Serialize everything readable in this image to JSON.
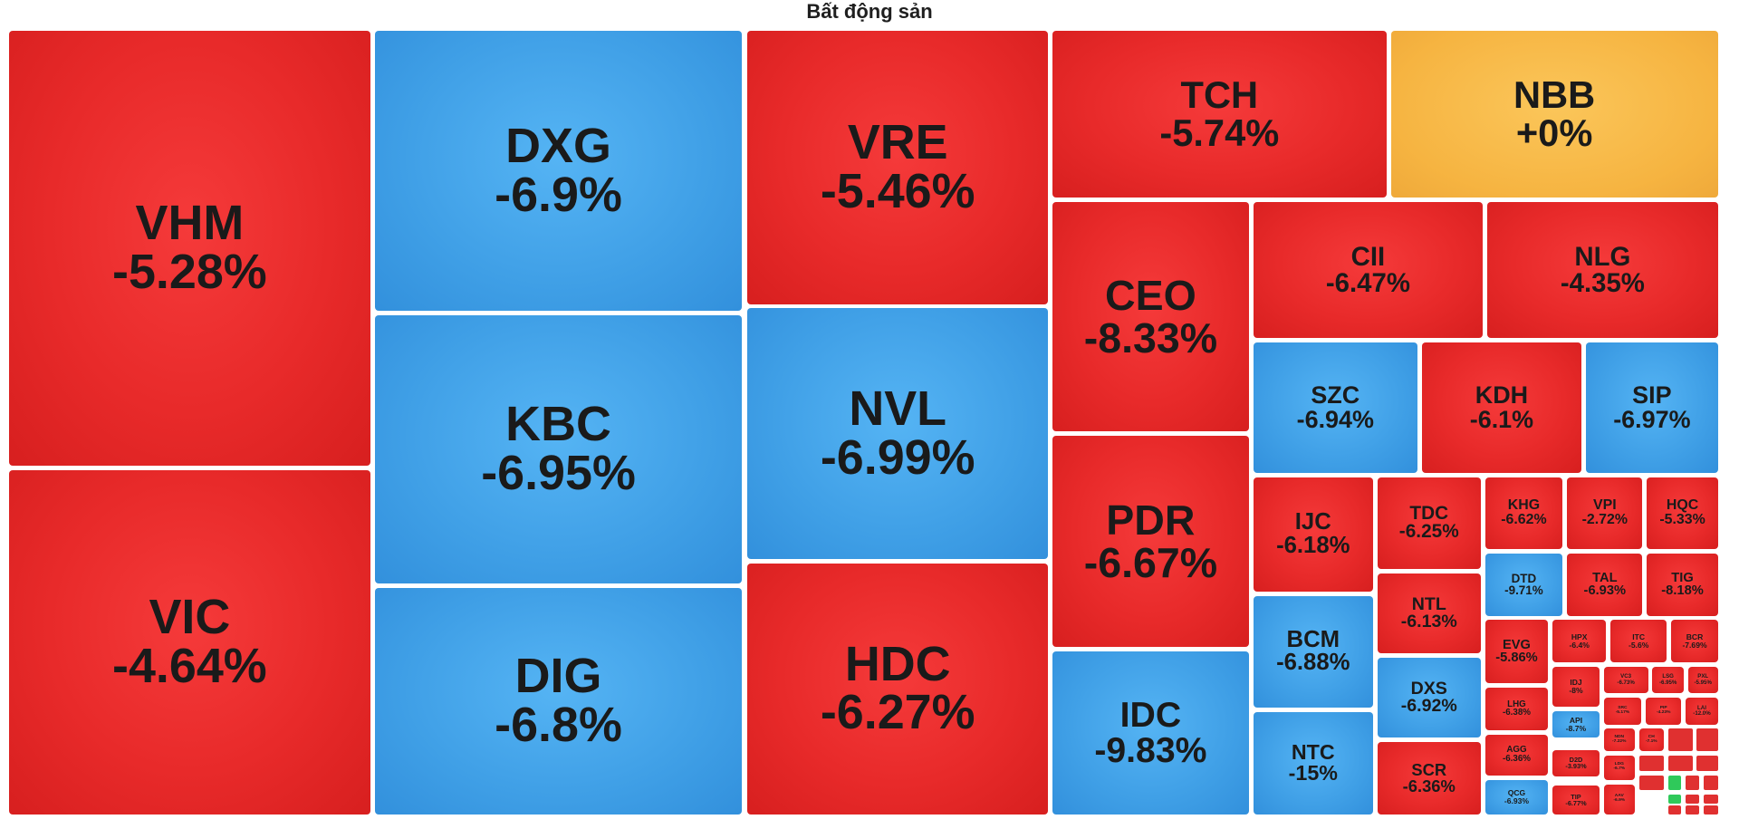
{
  "title": "Bất động sản",
  "colors": {
    "decline": "#e82a2a",
    "alt": "#3f9fe6",
    "unchanged": "#f6b441",
    "advance": "#2fc95a"
  },
  "chart_data": {
    "type": "treemap",
    "title": "Bất động sản",
    "items": [
      {
        "symbol": "VHM",
        "change": "-5.28%",
        "color": "red"
      },
      {
        "symbol": "VIC",
        "change": "-4.64%",
        "color": "red"
      },
      {
        "symbol": "DXG",
        "change": "-6.9%",
        "color": "blue"
      },
      {
        "symbol": "KBC",
        "change": "-6.95%",
        "color": "blue"
      },
      {
        "symbol": "DIG",
        "change": "-6.8%",
        "color": "blue"
      },
      {
        "symbol": "VRE",
        "change": "-5.46%",
        "color": "red"
      },
      {
        "symbol": "NVL",
        "change": "-6.99%",
        "color": "blue"
      },
      {
        "symbol": "HDC",
        "change": "-6.27%",
        "color": "red"
      },
      {
        "symbol": "TCH",
        "change": "-5.74%",
        "color": "red"
      },
      {
        "symbol": "NBB",
        "change": "+0%",
        "color": "yellow"
      },
      {
        "symbol": "CEO",
        "change": "-8.33%",
        "color": "red"
      },
      {
        "symbol": "CII",
        "change": "-6.47%",
        "color": "red"
      },
      {
        "symbol": "NLG",
        "change": "-4.35%",
        "color": "red"
      },
      {
        "symbol": "SZC",
        "change": "-6.94%",
        "color": "blue"
      },
      {
        "symbol": "KDH",
        "change": "-6.1%",
        "color": "red"
      },
      {
        "symbol": "SIP",
        "change": "-6.97%",
        "color": "blue"
      },
      {
        "symbol": "PDR",
        "change": "-6.67%",
        "color": "red"
      },
      {
        "symbol": "IJC",
        "change": "-6.18%",
        "color": "red"
      },
      {
        "symbol": "TDC",
        "change": "-6.25%",
        "color": "red"
      },
      {
        "symbol": "KHG",
        "change": "-6.62%",
        "color": "red"
      },
      {
        "symbol": "VPI",
        "change": "-2.72%",
        "color": "red"
      },
      {
        "symbol": "HQC",
        "change": "-5.33%",
        "color": "red"
      },
      {
        "symbol": "DTD",
        "change": "-9.71%",
        "color": "blue"
      },
      {
        "symbol": "TAL",
        "change": "-6.93%",
        "color": "red"
      },
      {
        "symbol": "TIG",
        "change": "-8.18%",
        "color": "red"
      },
      {
        "symbol": "NTL",
        "change": "-6.13%",
        "color": "red"
      },
      {
        "symbol": "BCM",
        "change": "-6.88%",
        "color": "blue"
      },
      {
        "symbol": "EVG",
        "change": "-5.86%",
        "color": "red"
      },
      {
        "symbol": "HPX",
        "change": "-6.4%",
        "color": "red"
      },
      {
        "symbol": "ITC",
        "change": "-5.6%",
        "color": "red"
      },
      {
        "symbol": "BCR",
        "change": "-7.69%",
        "color": "red"
      },
      {
        "symbol": "IDC",
        "change": "-9.83%",
        "color": "blue"
      },
      {
        "symbol": "DXS",
        "change": "-6.92%",
        "color": "blue"
      },
      {
        "symbol": "IDJ",
        "change": "-8%",
        "color": "red"
      },
      {
        "symbol": "VC3",
        "change": "-6.73%",
        "color": "red"
      },
      {
        "symbol": "LSG",
        "change": "-6.95%",
        "color": "red"
      },
      {
        "symbol": "PXL",
        "change": "-5.95%",
        "color": "red"
      },
      {
        "symbol": "LHG",
        "change": "-6.38%",
        "color": "red"
      },
      {
        "symbol": "SRC",
        "change": "-5.17%",
        "color": "red"
      },
      {
        "symbol": "PIP",
        "change": "-4.23%",
        "color": "red"
      },
      {
        "symbol": "LAI",
        "change": "-12.0%",
        "color": "red"
      },
      {
        "symbol": "API",
        "change": "-8.7%",
        "color": "blue"
      },
      {
        "symbol": "NTC",
        "change": "-15%",
        "color": "blue"
      },
      {
        "symbol": "SCR",
        "change": "-6.36%",
        "color": "red"
      },
      {
        "symbol": "AGG",
        "change": "-6.36%",
        "color": "red"
      },
      {
        "symbol": "NDN",
        "change": "-7.22%",
        "color": "red"
      },
      {
        "symbol": "CH",
        "change": "-7.1%",
        "color": "red"
      },
      {
        "symbol": "D2D",
        "change": "-3.93%",
        "color": "red"
      },
      {
        "symbol": "LDG",
        "change": "-6.7%",
        "color": "red"
      },
      {
        "symbol": "QCG",
        "change": "-6.93%",
        "color": "blue"
      },
      {
        "symbol": "TIP",
        "change": "-6.77%",
        "color": "red"
      },
      {
        "symbol": "AAV",
        "change": "-6.9%",
        "color": "red"
      }
    ]
  }
}
